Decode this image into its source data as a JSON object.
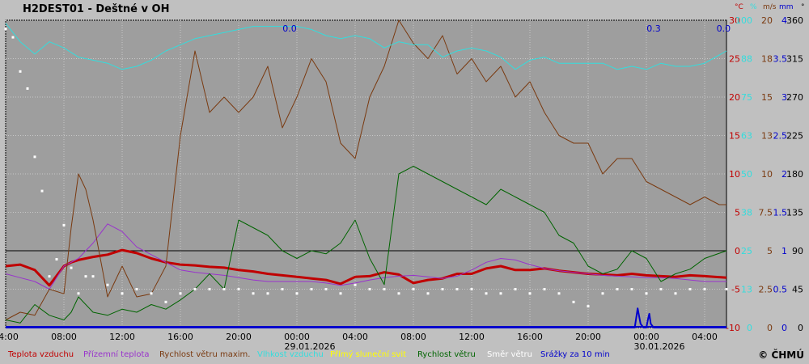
{
  "page": {
    "title": "H2DEST01 - Deštné v OH",
    "copyright": "© ČHMÚ"
  },
  "legend": [
    {
      "label": "Teplota vzduchu",
      "color": "#c00000"
    },
    {
      "label": "Přízemní teplota",
      "color": "#9933cc"
    },
    {
      "label": "Rychlost větru maxim.",
      "color": "#7a3a10"
    },
    {
      "label": "Vlhkost vzduchu",
      "color": "#33dddd"
    },
    {
      "label": "Přímý sluneční svit",
      "color": "#ffff00"
    },
    {
      "label": "Rychlost větru",
      "color": "#006400"
    },
    {
      "label": "Směr větru",
      "color": "#ffffff"
    },
    {
      "label": "Srážky za 10 min",
      "color": "#0000cc"
    }
  ],
  "units": [
    {
      "label": "°C",
      "color": "#c00000"
    },
    {
      "label": "%",
      "color": "#33dddd"
    },
    {
      "label": "m/s",
      "color": "#7a3a10"
    },
    {
      "label": "mm",
      "color": "#0000cc"
    },
    {
      "label": "°",
      "color": "#000000"
    }
  ],
  "chart_data": {
    "type": "line",
    "title": "H2DEST01 - Deštné v OH",
    "x_ticks": [
      "04:00",
      "08:00",
      "12:00",
      "16:00",
      "20:00",
      "00:00",
      "04:00",
      "08:00",
      "12:00",
      "16:00",
      "20:00",
      "00:00",
      "04:00"
    ],
    "date_labels": [
      {
        "after_tick": 5,
        "text": "29.01.2026"
      },
      {
        "after_tick": 11,
        "text": "30.01.2026"
      }
    ],
    "y_axes": [
      {
        "name": "temp",
        "unit": "°C",
        "color": "#c00000",
        "ticks": [
          30,
          25,
          20,
          15,
          10,
          5,
          0,
          -5,
          -10
        ]
      },
      {
        "name": "humidity",
        "unit": "%",
        "color": "#33dddd",
        "ticks": [
          100,
          88,
          75,
          63,
          50,
          38,
          25,
          13,
          0
        ]
      },
      {
        "name": "wind",
        "unit": "m/s",
        "color": "#7a3a10",
        "ticks": [
          20,
          18,
          15,
          13,
          10,
          7.5,
          5,
          2.5,
          0
        ]
      },
      {
        "name": "precip",
        "unit": "mm",
        "color": "#0000cc",
        "ticks": [
          4,
          3.5,
          3,
          2.5,
          2,
          1.5,
          1,
          0.5,
          0
        ]
      },
      {
        "name": "direction",
        "unit": "°",
        "color": "#000000",
        "ticks": [
          360,
          315,
          270,
          225,
          180,
          135,
          90,
          45,
          0
        ]
      }
    ],
    "precip_annotations": [
      {
        "x_hours": 19.5,
        "text": "0.0"
      },
      {
        "x_hours": 44.5,
        "text": "0.3"
      },
      {
        "x_hours": 49.3,
        "text": "0.0"
      }
    ],
    "ylim": [
      -10,
      30
    ],
    "x_range_hours": [
      0,
      49.5
    ],
    "series": [
      {
        "name": "Teplota vzduchu",
        "axis": "temp",
        "color": "#c00000",
        "x": [
          0,
          1,
          2,
          3,
          4,
          4.5,
          5,
          6,
          7,
          8,
          9,
          10,
          11,
          12,
          13,
          14,
          15,
          16,
          17,
          18,
          19,
          20,
          21,
          22,
          23,
          24,
          25,
          26,
          27,
          28,
          29,
          30,
          31,
          32,
          33,
          34,
          35,
          36,
          37,
          38,
          39,
          40,
          41,
          42,
          43,
          44,
          45,
          46,
          47,
          48,
          49.5
        ],
        "y": [
          -2,
          -1.8,
          -2.5,
          -4.5,
          -2,
          -1.5,
          -1.2,
          -0.8,
          -0.5,
          0.1,
          -0.3,
          -1,
          -1.5,
          -1.8,
          -1.9,
          -2.1,
          -2.2,
          -2.5,
          -2.7,
          -3,
          -3.2,
          -3.4,
          -3.6,
          -3.8,
          -4.3,
          -3.4,
          -3.3,
          -2.8,
          -3.1,
          -4.2,
          -3.8,
          -3.6,
          -3,
          -3,
          -2.3,
          -2,
          -2.5,
          -2.5,
          -2.3,
          -2.6,
          -2.8,
          -3,
          -3.1,
          -3.2,
          -3,
          -3.2,
          -3.3,
          -3.4,
          -3.2,
          -3.3,
          -3.5
        ]
      },
      {
        "name": "Přízemní teplota",
        "axis": "temp",
        "color": "#9933cc",
        "x": [
          0,
          1,
          2,
          3,
          4,
          5,
          6,
          7,
          8,
          9,
          10,
          11,
          12,
          13,
          14,
          15,
          16,
          17,
          18,
          19,
          20,
          21,
          22,
          23,
          24,
          25,
          26,
          27,
          28,
          29,
          30,
          31,
          32,
          33,
          34,
          35,
          36,
          37,
          38,
          39,
          40,
          41,
          42,
          43,
          44,
          45,
          46,
          47,
          48,
          49.5
        ],
        "y": [
          -3,
          -3.5,
          -4,
          -5,
          -2,
          -1,
          1,
          3.5,
          2.5,
          0.5,
          -0.5,
          -1.5,
          -2.5,
          -2.8,
          -3,
          -3.2,
          -3.5,
          -3.8,
          -4,
          -4,
          -4,
          -4,
          -4.2,
          -4.5,
          -4.2,
          -3.8,
          -3.5,
          -3.3,
          -3.2,
          -3.4,
          -3.6,
          -3.3,
          -2.5,
          -1.5,
          -1,
          -1.2,
          -1.8,
          -2.3,
          -2.6,
          -2.8,
          -3,
          -3.2,
          -3.3,
          -3.4,
          -3.5,
          -3.5,
          -3.6,
          -3.8,
          -4,
          -4
        ]
      },
      {
        "name": "Rychlost větru maxim.",
        "axis": "wind",
        "color": "#7a3a10",
        "x": [
          0,
          1,
          2,
          3,
          4,
          4.5,
          5,
          5.5,
          6,
          7,
          8,
          9,
          10,
          11,
          12,
          13,
          14,
          15,
          16,
          17,
          18,
          19,
          20,
          21,
          22,
          23,
          24,
          25,
          26,
          27,
          28,
          29,
          30,
          31,
          32,
          33,
          34,
          35,
          36,
          37,
          38,
          39,
          40,
          41,
          42,
          43,
          44,
          45,
          46,
          47,
          48,
          49,
          49.5
        ],
        "y": [
          0.5,
          1,
          0.8,
          2.5,
          2.2,
          6.5,
          10,
          9,
          7,
          2,
          4,
          2,
          2.2,
          4,
          12.5,
          18,
          14,
          15,
          14,
          15,
          17,
          13,
          15,
          17.5,
          16,
          12,
          11,
          15,
          17,
          20,
          18.5,
          17.5,
          19,
          16.5,
          17.5,
          16,
          17,
          15,
          16,
          14,
          12.5,
          12,
          12,
          10,
          11,
          11,
          9.5,
          9,
          8.5,
          8,
          8.5,
          8,
          8
        ]
      },
      {
        "name": "Vlhkost vzduchu",
        "axis": "humidity",
        "color": "#33dddd",
        "x": [
          0,
          1,
          2,
          3,
          4,
          5,
          6,
          7,
          8,
          9,
          10,
          11,
          12,
          13,
          14,
          15,
          16,
          17,
          18,
          19,
          20,
          21,
          22,
          23,
          24,
          25,
          26,
          27,
          28,
          29,
          30,
          31,
          32,
          33,
          34,
          35,
          36,
          37,
          38,
          39,
          40,
          41,
          42,
          43,
          44,
          45,
          46,
          47,
          48,
          49.5
        ],
        "y": [
          99,
          93,
          89,
          93,
          91,
          88,
          87,
          86,
          84,
          85,
          87,
          90,
          92,
          94,
          95,
          96,
          97,
          98,
          98,
          98,
          98,
          97,
          95,
          94,
          95,
          94,
          91,
          93,
          92,
          92,
          88,
          90,
          91,
          90,
          88,
          84,
          87,
          88,
          86,
          86,
          86,
          86,
          84,
          85,
          84,
          86,
          85,
          85,
          86,
          90
        ]
      },
      {
        "name": "Rychlost větru",
        "axis": "wind",
        "color": "#006400",
        "x": [
          0,
          1,
          2,
          3,
          4,
          4.5,
          5,
          6,
          7,
          8,
          9,
          10,
          11,
          12,
          13,
          14,
          15,
          16,
          17,
          18,
          19,
          20,
          21,
          22,
          23,
          24,
          25,
          26,
          27,
          28,
          29,
          30,
          31,
          32,
          33,
          34,
          35,
          36,
          37,
          38,
          39,
          40,
          41,
          42,
          43,
          44,
          45,
          46,
          47,
          48,
          49.5
        ],
        "y": [
          0.5,
          0.3,
          1.5,
          0.8,
          0.5,
          1,
          2,
          1,
          0.8,
          1.2,
          1,
          1.5,
          1.2,
          1.8,
          2.5,
          3.5,
          2.5,
          7,
          6.5,
          6,
          5,
          4.5,
          5,
          4.8,
          5.5,
          7,
          4.5,
          2.8,
          10,
          10.5,
          10,
          9.5,
          9,
          8.5,
          8,
          9,
          8.5,
          8,
          7.5,
          6,
          5.5,
          4,
          3.5,
          3.8,
          5,
          4.5,
          3,
          3.5,
          3.8,
          4.5,
          5
        ]
      },
      {
        "name": "Směr větru",
        "axis": "direction",
        "color": "#ffffff",
        "x": [
          0,
          0.5,
          1,
          1.5,
          2,
          2.5,
          3,
          3.5,
          4,
          4.5,
          5,
          5.5,
          6,
          7,
          8,
          9,
          10,
          11,
          12,
          13,
          14,
          15,
          16,
          17,
          18,
          19,
          20,
          21,
          22,
          23,
          24,
          25,
          26,
          27,
          28,
          29,
          30,
          31,
          32,
          33,
          34,
          35,
          36,
          37,
          38,
          39,
          40,
          41,
          42,
          43,
          44,
          45,
          46,
          47,
          48,
          49.5
        ],
        "y": [
          350,
          340,
          300,
          280,
          200,
          160,
          60,
          80,
          120,
          70,
          40,
          60,
          60,
          50,
          40,
          45,
          40,
          30,
          40,
          45,
          45,
          45,
          45,
          40,
          40,
          45,
          40,
          45,
          45,
          40,
          50,
          45,
          45,
          40,
          45,
          40,
          45,
          45,
          45,
          40,
          40,
          45,
          40,
          45,
          40,
          30,
          25,
          40,
          45,
          45,
          40,
          45,
          40,
          45,
          45,
          45
        ]
      },
      {
        "name": "Srážky za 10 min",
        "axis": "precip",
        "color": "#0000cc",
        "x": [
          0,
          43,
          43.2,
          43.4,
          43.6,
          43.8,
          44,
          44.1,
          44.2,
          44.3,
          44.5,
          49.5
        ],
        "y": [
          0,
          0,
          0,
          0.25,
          0.05,
          0,
          0,
          0.1,
          0.18,
          0.05,
          0,
          0
        ]
      }
    ]
  }
}
